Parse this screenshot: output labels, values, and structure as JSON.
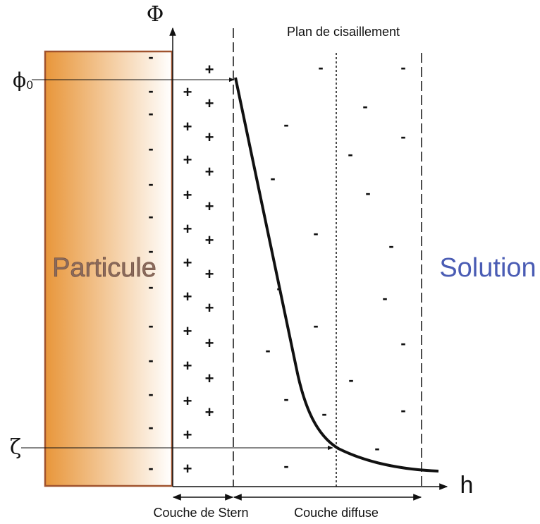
{
  "axes": {
    "potential": "Φ",
    "distance": "h"
  },
  "markers": {
    "phi0": {
      "symbol": "ϕ",
      "subscript": "0"
    },
    "zeta": "ζ"
  },
  "labels": {
    "shear_plane": "Plan de cisaillement",
    "particle": "Particule",
    "solution": "Solution",
    "stern_layer": "Couche de Stern",
    "diffuse_layer": "Couche diffuse"
  },
  "signs": {
    "negative": "-",
    "positive": "+"
  }
}
